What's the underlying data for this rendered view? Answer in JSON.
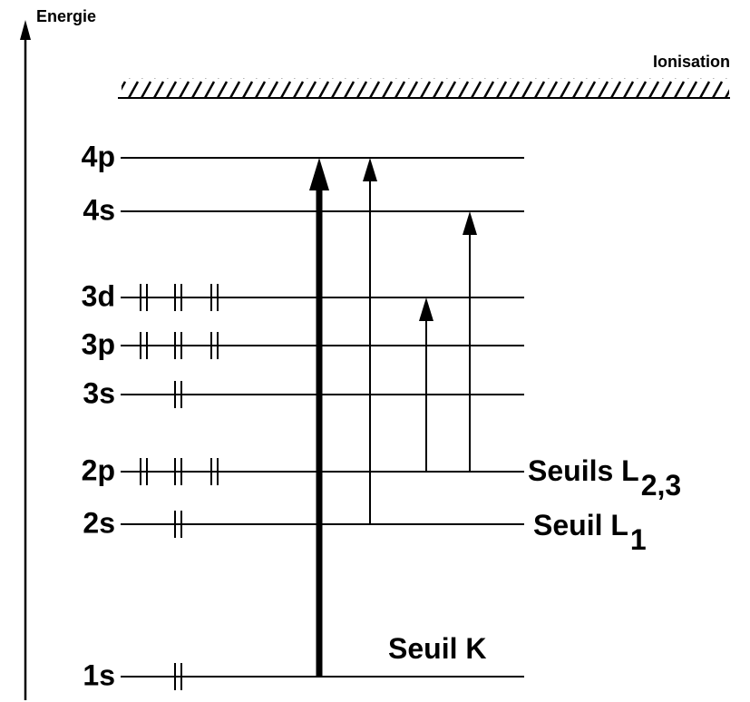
{
  "axis_label": "Energie",
  "ionisation": "Ionisation",
  "levels": [
    {
      "label": "4p"
    },
    {
      "label": "4s"
    },
    {
      "label": "3d"
    },
    {
      "label": "3p"
    },
    {
      "label": "3s"
    },
    {
      "label": "2p"
    },
    {
      "label": "2s"
    },
    {
      "label": "1s"
    }
  ],
  "thresholds": [
    {
      "label": "Seuils L",
      "subscript": "2,3"
    },
    {
      "label": "Seuil L",
      "subscript": "1"
    },
    {
      "label": "Seuil K"
    }
  ]
}
